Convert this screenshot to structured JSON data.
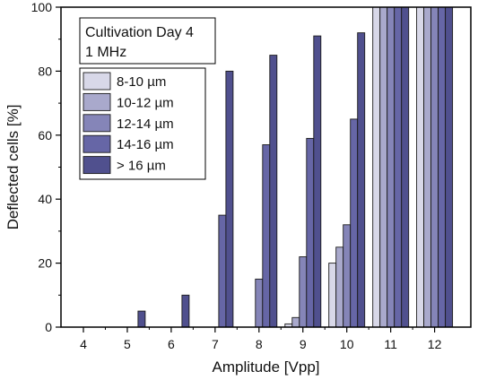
{
  "chart_data": {
    "type": "bar",
    "xlabel": "Amplitude [Vpp]",
    "ylabel": "Deflected cells [%]",
    "categories": [
      "4",
      "5",
      "6",
      "7",
      "8",
      "9",
      "10",
      "11",
      "12"
    ],
    "ylim": [
      0,
      100
    ],
    "yticks": [
      "0",
      "20",
      "40",
      "60",
      "80",
      "100"
    ],
    "grid": false,
    "legend_position": "top-left",
    "annotation": [
      "Cultivation Day 4",
      "1 MHz"
    ],
    "series": [
      {
        "name": "8-10 µm",
        "color": "#d8d8e8",
        "values": [
          0,
          0,
          0,
          0,
          0,
          1,
          20,
          100,
          100
        ]
      },
      {
        "name": "10-12 µm",
        "color": "#a9a9cc",
        "values": [
          0,
          0,
          0,
          0,
          0,
          3,
          25,
          100,
          100
        ]
      },
      {
        "name": "12-14 µm",
        "color": "#8585b8",
        "values": [
          0,
          0,
          0,
          0,
          15,
          22,
          32,
          100,
          100
        ]
      },
      {
        "name": "14-16 µm",
        "color": "#6666a6",
        "values": [
          0,
          0,
          0,
          35,
          57,
          59,
          65,
          100,
          100
        ]
      },
      {
        "name": "> 16 µm",
        "color": "#50508e",
        "values": [
          0,
          5,
          10,
          80,
          85,
          91,
          92,
          100,
          100
        ]
      }
    ]
  }
}
